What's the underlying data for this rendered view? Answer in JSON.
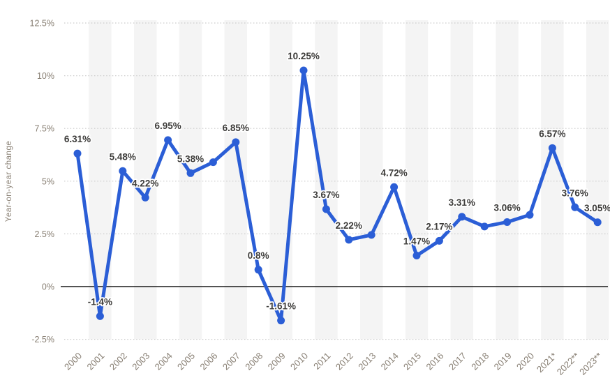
{
  "chart_data": {
    "type": "line",
    "title": "",
    "xlabel": "",
    "ylabel": "Year-on-year change",
    "categories": [
      "2000",
      "2001",
      "2002",
      "2003",
      "2004",
      "2005",
      "2006",
      "2007",
      "2008",
      "2009",
      "2010",
      "2011",
      "2012",
      "2013",
      "2014",
      "2015",
      "2016",
      "2017",
      "2018",
      "2019",
      "2020",
      "2021*",
      "2022**",
      "2023**"
    ],
    "values": [
      6.31,
      -1.4,
      5.48,
      4.22,
      6.95,
      5.38,
      5.9,
      6.85,
      0.8,
      -1.61,
      10.25,
      3.67,
      2.22,
      2.45,
      4.72,
      1.47,
      2.17,
      3.31,
      2.85,
      3.06,
      3.4,
      6.57,
      3.76,
      3.05
    ],
    "point_labels": [
      "6.31%",
      "-1.4%",
      "5.48%",
      "4.22%",
      "6.95%",
      "5.38%",
      "",
      "6.85%",
      "0.8%",
      "-1.61%",
      "10.25%",
      "3.67%",
      "2.22%",
      "",
      "4.72%",
      "1.47%",
      "2.17%",
      "3.31%",
      "",
      "3.06%",
      "",
      "6.57%",
      "3.76%",
      "3.05%"
    ],
    "yticks": [
      {
        "value": 12.5,
        "label": "12.5%"
      },
      {
        "value": 10,
        "label": "10%"
      },
      {
        "value": 7.5,
        "label": "7.5%"
      },
      {
        "value": 5,
        "label": "5%"
      },
      {
        "value": 2.5,
        "label": "2.5%"
      },
      {
        "value": 0,
        "label": "0%"
      },
      {
        "value": -2.5,
        "label": "-2.5%"
      }
    ],
    "ylim": [
      -2.5,
      12.5
    ],
    "grid": "horizontal-dotted",
    "legend": "none",
    "zero_baseline": true,
    "striped_columns": "odd-years",
    "colors": {
      "line": "#2b5ed6",
      "marker": "#2b5ed6",
      "point_label": "#3d3c3a",
      "axis_text": "#867d71",
      "gridline": "#c9c9c9",
      "zero_line": "#1a1a1a",
      "column_stripe": "#f4f4f4",
      "background": "#ffffff"
    }
  }
}
